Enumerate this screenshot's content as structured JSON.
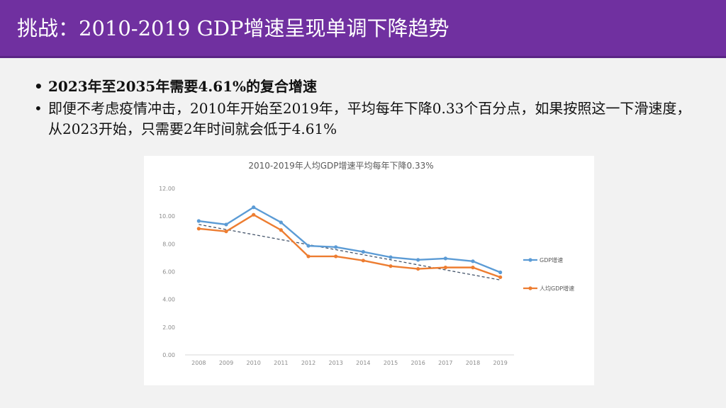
{
  "slide": {
    "title": "挑战：2010-2019 GDP增速呈现单调下降趋势",
    "bullets": [
      "2023年至2035年需要4.61%的复合增速",
      "即便不考虑疫情冲击，2010年开始至2019年，平均每年下降0.33个百分点，如果按照这一下滑速度，从2023开始，只需要2年时间就会低于4.61%"
    ],
    "bullet_symbol": "•"
  },
  "colors": {
    "title_bg": "#7030a0",
    "series_gdp": "#5b9bd5",
    "series_per_capita": "#ed7d31",
    "trend": "#44546a",
    "axis_text": "#8c8c8c"
  },
  "chart_data": {
    "type": "line",
    "title": "2010-2019年人均GDP增速平均每年下降0.33%",
    "categories": [
      "2008",
      "2009",
      "2010",
      "2011",
      "2012",
      "2013",
      "2014",
      "2015",
      "2016",
      "2017",
      "2018",
      "2019"
    ],
    "ytick_labels": [
      "0.00",
      "2.00",
      "4.00",
      "6.00",
      "8.00",
      "10.00",
      "12.00"
    ],
    "ylim": [
      0,
      12
    ],
    "series": [
      {
        "name": "GDP增速",
        "values": [
          9.65,
          9.4,
          10.64,
          9.55,
          7.86,
          7.77,
          7.43,
          7.04,
          6.85,
          6.95,
          6.75,
          5.95
        ]
      },
      {
        "name": "人均GDP增速",
        "values": [
          9.1,
          8.9,
          10.1,
          9.0,
          7.1,
          7.1,
          6.8,
          6.4,
          6.2,
          6.3,
          6.3,
          5.6
        ]
      }
    ],
    "trendline": {
      "style": "dashed",
      "start_value": 9.4,
      "end_value": 5.4
    },
    "legend_position": "right"
  }
}
